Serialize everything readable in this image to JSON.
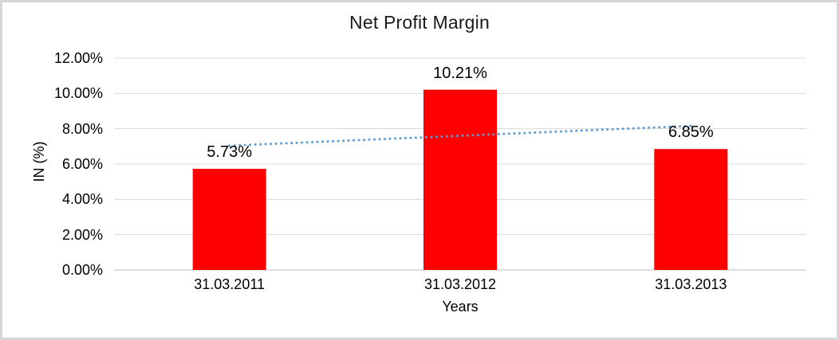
{
  "chart_data": {
    "type": "bar",
    "title": "Net Profit Margin",
    "categories": [
      "31.03.2011",
      "31.03.2012",
      "31.03.2013"
    ],
    "values": [
      5.73,
      10.21,
      6.85
    ],
    "data_labels": [
      "5.73%",
      "10.21%",
      "6.85%"
    ],
    "series": [
      {
        "name": "Net Profit Margin",
        "values": [
          5.73,
          10.21,
          6.85
        ]
      }
    ],
    "xlabel": "Years",
    "ylabel": "IN (%)",
    "ylim": [
      0,
      12
    ],
    "ytick_step": 2,
    "ytick_values": [
      0,
      2,
      4,
      6,
      8,
      10,
      12
    ],
    "ytick_labels": [
      "0.00%",
      "2.00%",
      "4.00%",
      "6.00%",
      "8.00%",
      "10.00%",
      "12.00%"
    ],
    "grid": true,
    "legend_position": "none",
    "trendline": {
      "type": "linear",
      "style": "dotted",
      "start_value": 7.04,
      "end_value": 8.16
    },
    "colors": {
      "bar": "#FF0000",
      "trendline": "#5B9BD5",
      "gridline": "#D9D9D9",
      "axis_line": "#BFBFBF",
      "text": "#000000",
      "frame_border": "#D6D6D6",
      "background": "#FFFFFF"
    }
  }
}
